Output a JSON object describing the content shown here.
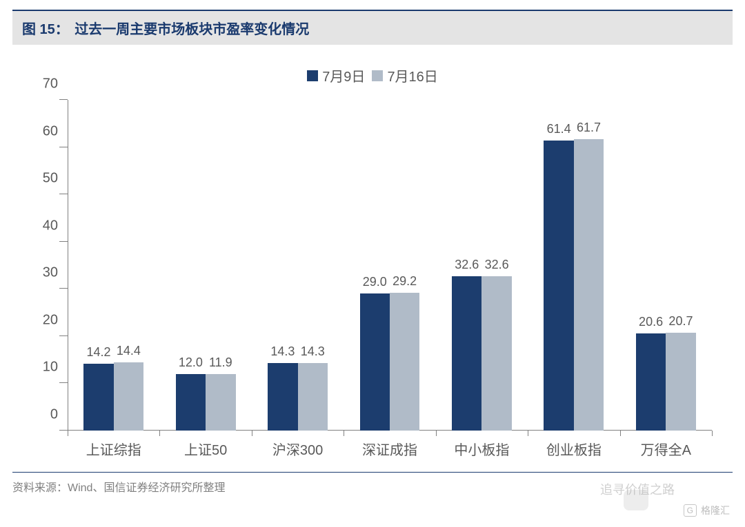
{
  "figure": {
    "number_label": "图 15：",
    "title": "过去一周主要市场板块市盈率变化情况",
    "source_label": "资料来源：Wind、国信证券经济研究所整理"
  },
  "chart": {
    "type": "bar",
    "background_color": "#ffffff",
    "axis_color": "#808080",
    "text_color": "#595959",
    "title_color": "#1a3a6e",
    "title_bg": "#e4e4e4",
    "ylim": [
      0,
      70
    ],
    "ytick_step": 10,
    "yticks": [
      0,
      10,
      20,
      30,
      40,
      50,
      60,
      70
    ],
    "categories": [
      "上证综指",
      "上证50",
      "沪深300",
      "深证成指",
      "中小板指",
      "创业板指",
      "万得全A"
    ],
    "series": [
      {
        "name": "7月9日",
        "color": "#1c3d6e",
        "values": [
          14.2,
          12.0,
          14.3,
          29.0,
          32.6,
          61.4,
          20.6
        ]
      },
      {
        "name": "7月16日",
        "color": "#b0bbc8",
        "values": [
          14.4,
          11.9,
          14.3,
          29.2,
          32.6,
          61.7,
          20.7
        ]
      }
    ],
    "label_fontsize": 18,
    "tick_fontsize": 20,
    "legend_fontsize": 20,
    "bar_group_gap_ratio": 0.35
  },
  "watermark": {
    "text1": "追寻价值之路",
    "text2": "格隆汇"
  }
}
